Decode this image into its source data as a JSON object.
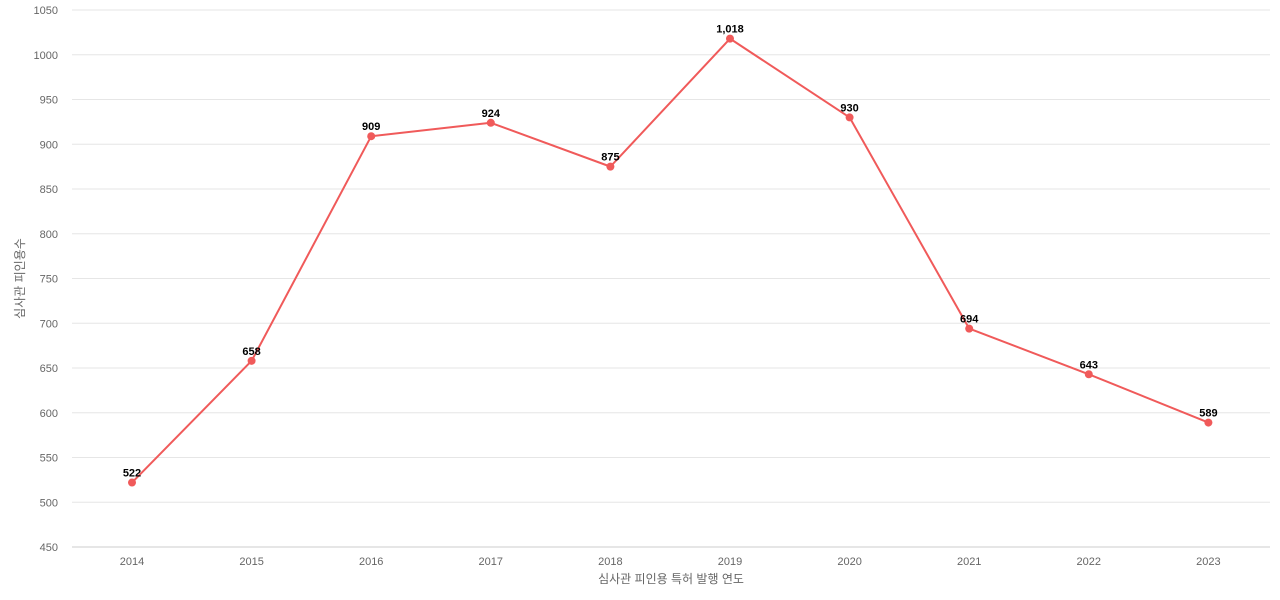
{
  "chart_data": {
    "type": "line",
    "title": "",
    "xlabel": "심사관 피인용 특허 발행 연도",
    "ylabel": "심사관 피인용수",
    "categories": [
      "2014",
      "2015",
      "2016",
      "2017",
      "2018",
      "2019",
      "2020",
      "2021",
      "2022",
      "2023"
    ],
    "series": [
      {
        "values": [
          522,
          658,
          909,
          924,
          875,
          1018,
          930,
          694,
          643,
          589
        ],
        "color": "#f05a5a"
      }
    ],
    "data_labels": [
      "522",
      "658",
      "909",
      "924",
      "875",
      "1,018",
      "930",
      "694",
      "643",
      "589"
    ],
    "ylim": [
      450,
      1050
    ],
    "yticks": [
      450,
      500,
      550,
      600,
      650,
      700,
      750,
      800,
      850,
      900,
      950,
      1000,
      1050
    ],
    "grid": true,
    "legend": "none"
  }
}
